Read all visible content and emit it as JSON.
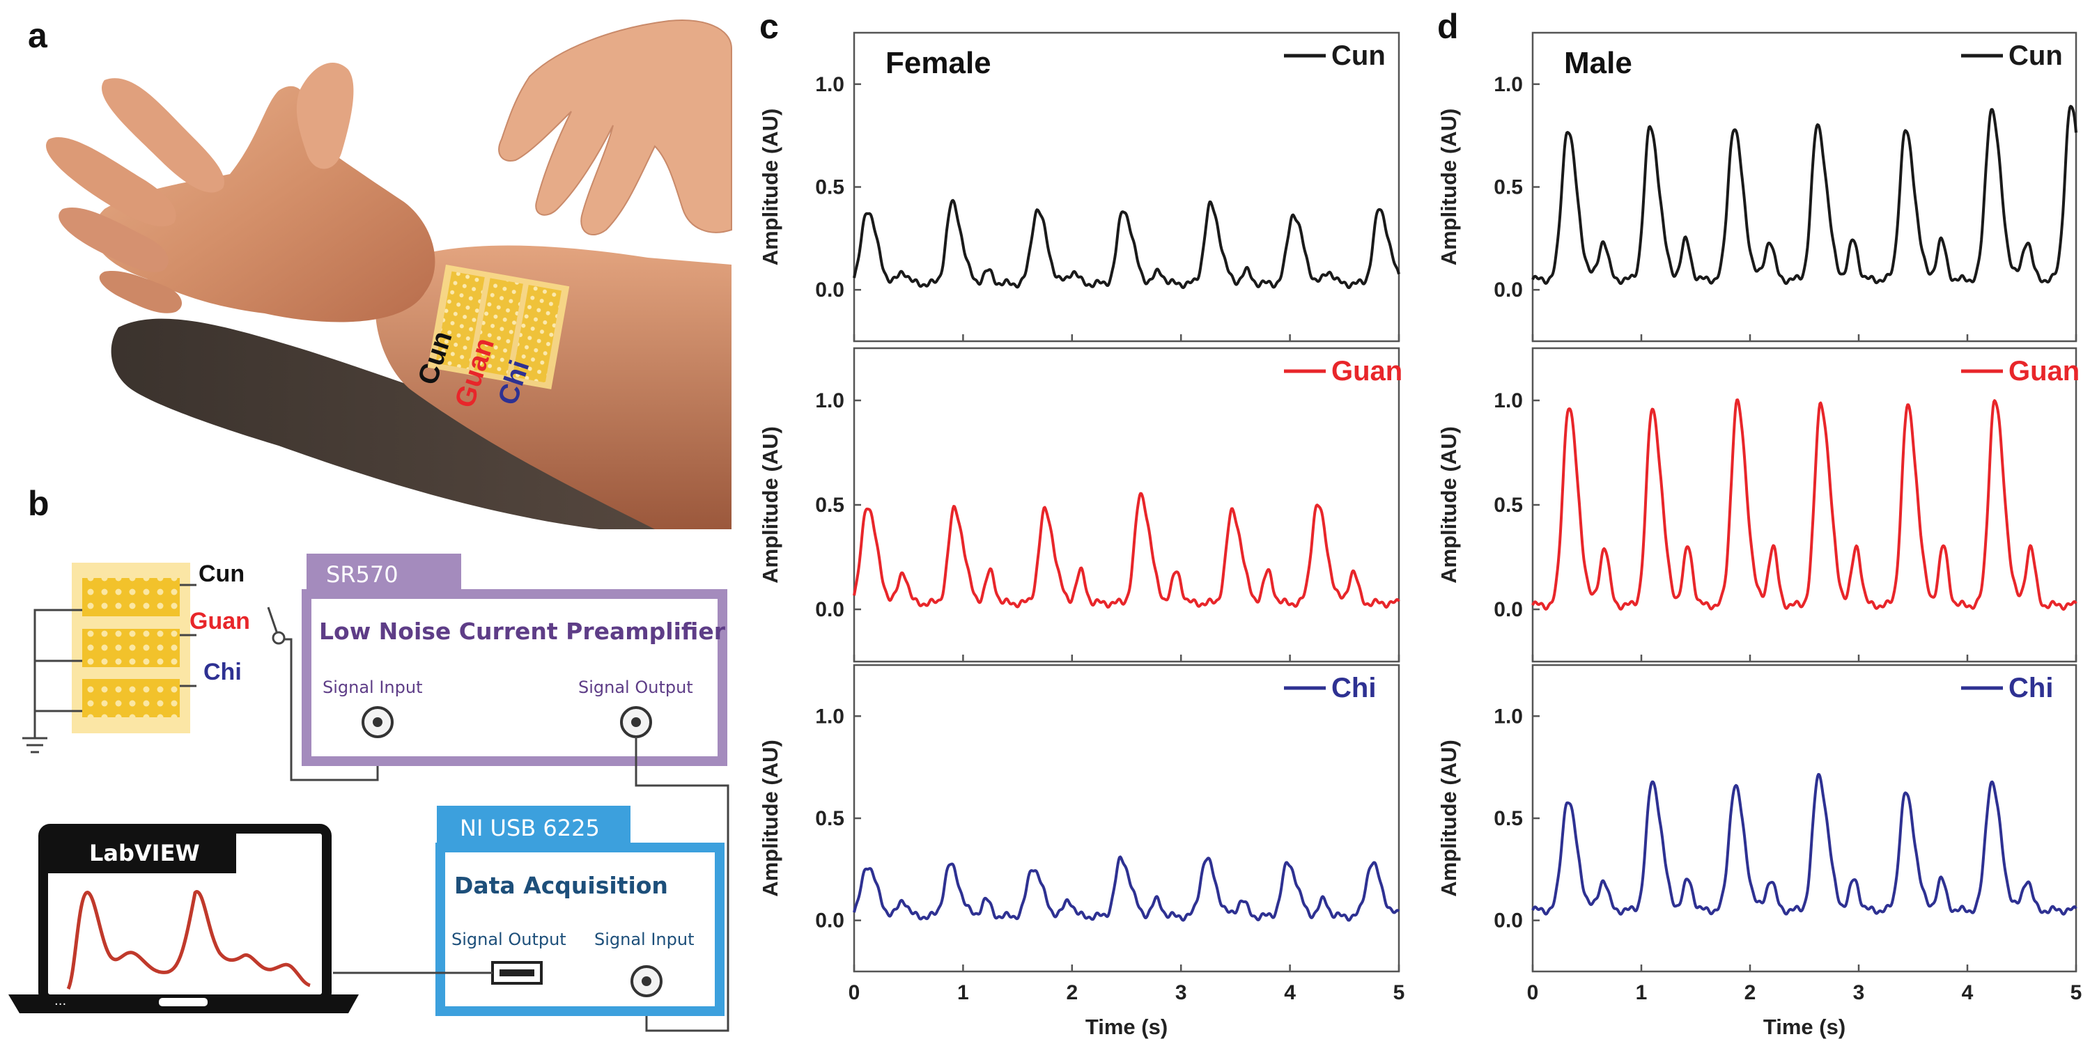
{
  "panels": {
    "a": "a",
    "b": "b",
    "c": "c",
    "d": "d"
  },
  "panel_a": {
    "labels": [
      "Cun",
      "Guan",
      "Chi"
    ]
  },
  "panel_b": {
    "sensor_labels": [
      "Cun",
      "Guan",
      "Chi"
    ],
    "preamp": {
      "tab": "SR570",
      "title": "Low Noise Current Preamplifier",
      "in_label": "Signal Input",
      "out_label": "Signal Output"
    },
    "daq": {
      "tab": "NI USB 6225",
      "title": "Data Acquisition",
      "out_label": "Signal Output",
      "in_label": "Signal Input"
    },
    "laptop": {
      "tab": "LabVIEW"
    }
  },
  "colors": {
    "Cun": "#1a1a1a",
    "Guan": "#e8262a",
    "Chi": "#2e3192"
  },
  "chart_data": [
    {
      "type": "line",
      "panel": "c",
      "title": "Female",
      "xlabel": "Time (s)",
      "ylabel": "Amplitude (AU)",
      "xlim": [
        0,
        5
      ],
      "ylim": [
        -0.25,
        1.25
      ],
      "xticks": [
        0,
        1,
        2,
        3,
        4,
        5
      ],
      "yticks": [
        0.0,
        0.5,
        1.0
      ],
      "legend_position": "top-right",
      "series": [
        {
          "name": "Cun",
          "beats": [
            0.12,
            0.9,
            1.68,
            2.47,
            3.27,
            4.03,
            4.82
          ],
          "peaks": [
            0.39,
            0.42,
            0.39,
            0.39,
            0.41,
            0.37,
            0.39
          ],
          "second": 0.09,
          "base": 0.03
        },
        {
          "name": "Guan",
          "beats": [
            0.12,
            0.92,
            1.75,
            2.63,
            3.47,
            4.25
          ],
          "peaks": [
            0.5,
            0.48,
            0.47,
            0.55,
            0.47,
            0.5
          ],
          "second": 0.18,
          "base": 0.03
        },
        {
          "name": "Chi",
          "beats": [
            0.12,
            0.88,
            1.64,
            2.45,
            3.23,
            3.98,
            4.75
          ],
          "peaks": [
            0.27,
            0.27,
            0.26,
            0.3,
            0.3,
            0.28,
            0.28
          ],
          "second": 0.1,
          "base": 0.02
        }
      ]
    },
    {
      "type": "line",
      "panel": "d",
      "title": "Male",
      "xlabel": "Time (s)",
      "ylabel": "Amplitude (AU)",
      "xlim": [
        0,
        5
      ],
      "ylim": [
        -0.25,
        1.25
      ],
      "xticks": [
        0,
        1,
        2,
        3,
        4,
        5
      ],
      "yticks": [
        0.0,
        0.5,
        1.0
      ],
      "legend_position": "top-right",
      "series": [
        {
          "name": "Cun",
          "beats": [
            0.32,
            1.08,
            1.85,
            2.62,
            3.43,
            4.22,
            4.95
          ],
          "peaks": [
            0.78,
            0.79,
            0.79,
            0.8,
            0.77,
            0.88,
            0.89
          ],
          "second": 0.24,
          "base": 0.05
        },
        {
          "name": "Guan",
          "beats": [
            0.33,
            1.1,
            1.88,
            2.65,
            3.45,
            4.25
          ],
          "peaks": [
            0.97,
            0.96,
            0.99,
            0.99,
            0.97,
            1.0
          ],
          "second": 0.3,
          "base": 0.02
        },
        {
          "name": "Chi",
          "beats": [
            0.32,
            1.1,
            1.86,
            2.63,
            3.43,
            4.22
          ],
          "peaks": [
            0.59,
            0.68,
            0.66,
            0.71,
            0.62,
            0.68
          ],
          "second": 0.2,
          "base": 0.05
        }
      ]
    }
  ]
}
